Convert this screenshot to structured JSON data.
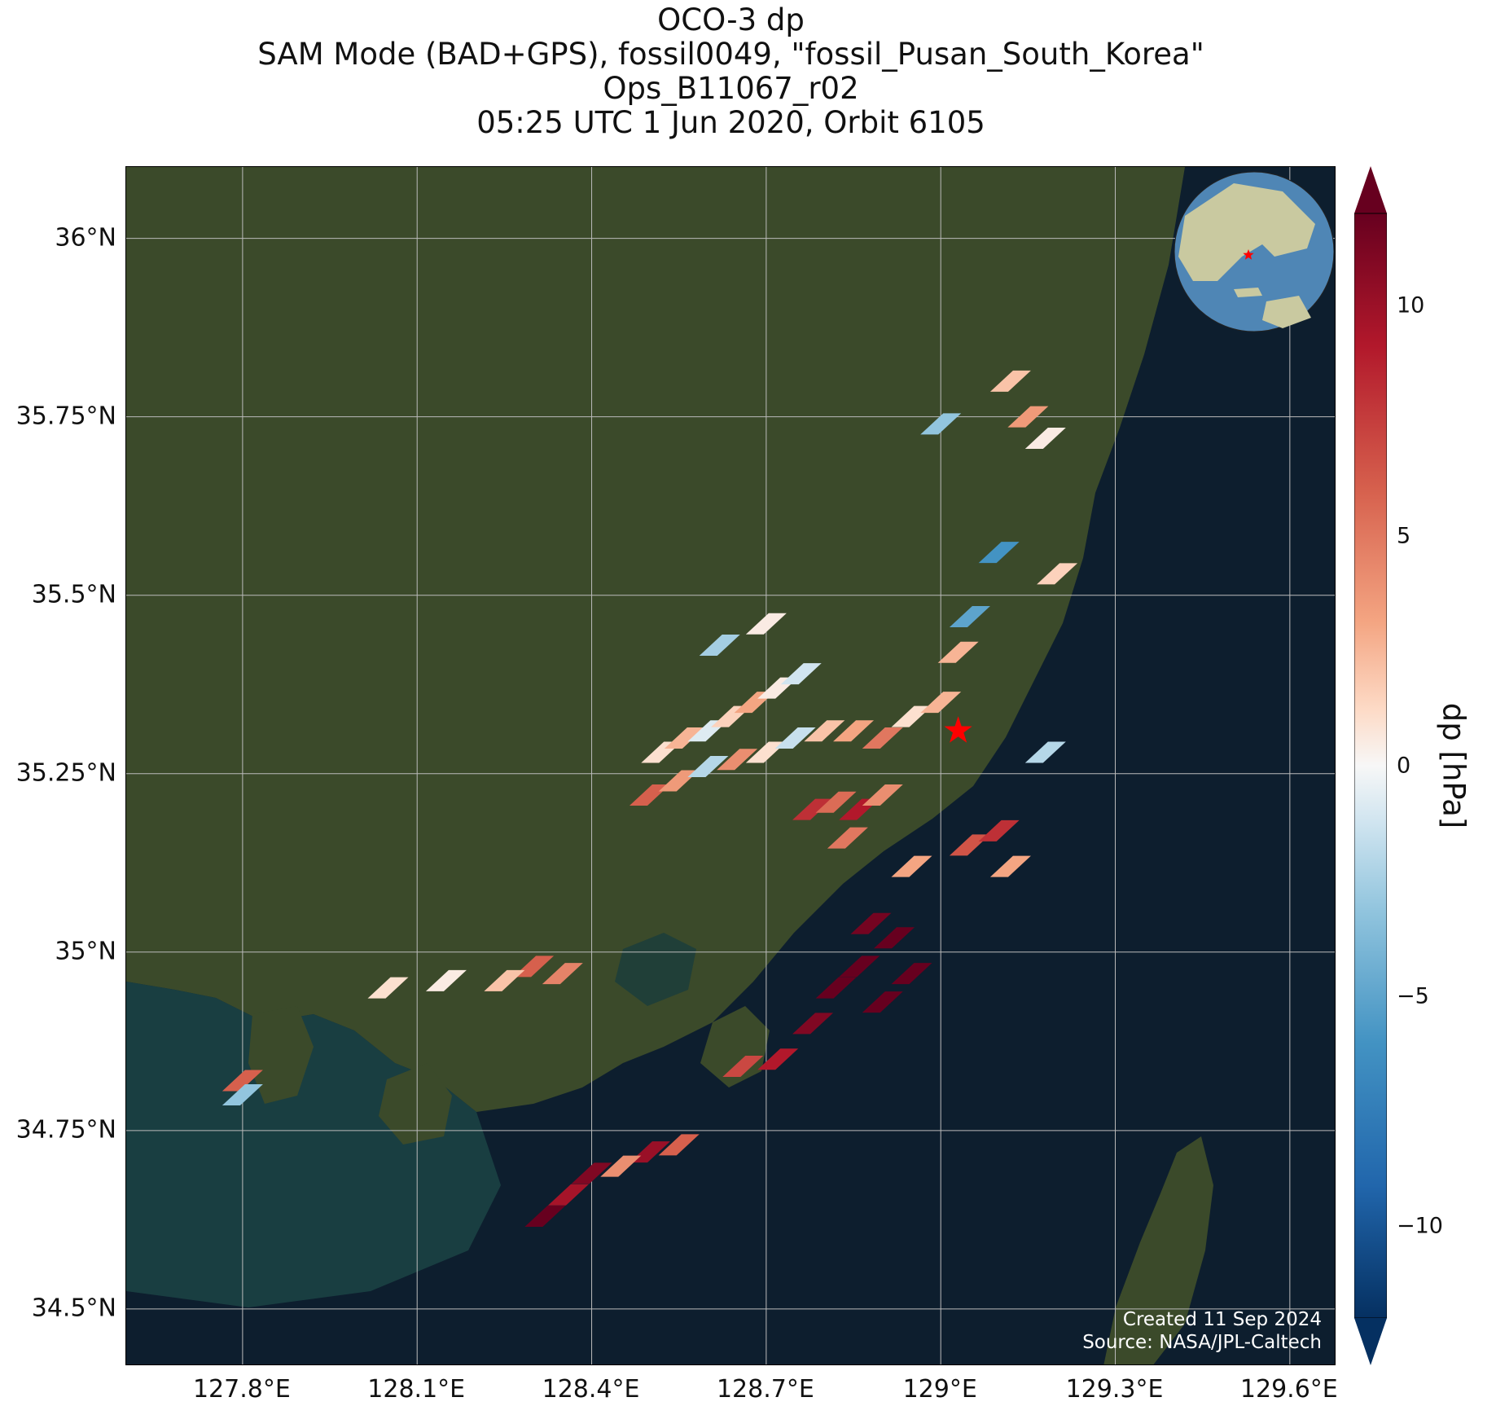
{
  "title": {
    "line1": "OCO-3 dp",
    "line2": "SAM Mode (BAD+GPS), fossil0049, \"fossil_Pusan_South_Korea\"",
    "line3": "Ops_B11067_r02",
    "line4": "05:25 UTC 1 Jun 2020, Orbit 6105"
  },
  "map": {
    "lon_range": [
      127.6,
      129.68
    ],
    "lat_range": [
      34.42,
      36.1
    ],
    "x_ticks": [
      "127.8°E",
      "128.1°E",
      "128.4°E",
      "128.7°E",
      "129°E",
      "129.3°E",
      "129.6°E"
    ],
    "x_tick_values": [
      127.8,
      128.1,
      128.4,
      128.7,
      129.0,
      129.3,
      129.6
    ],
    "y_ticks": [
      "36°N",
      "35.75°N",
      "35.5°N",
      "35.25°N",
      "35°N",
      "34.75°N",
      "34.5°N"
    ],
    "y_tick_values": [
      36.0,
      35.75,
      35.5,
      35.25,
      35.0,
      34.75,
      34.5
    ],
    "gridlines": true,
    "land_color": "#3b4a2a",
    "sea_color": "#0d1e2e",
    "target_marker": {
      "lon": 129.03,
      "lat": 35.31,
      "color": "#ff0000",
      "shape": "star"
    },
    "inset_globe": {
      "position": "top-right",
      "target_color": "#ff0000"
    }
  },
  "colorbar": {
    "label": "dp [hPa]",
    "vmin": -12,
    "vmax": 12,
    "ticks": [
      "10",
      "5",
      "0",
      "−5",
      "−10"
    ],
    "tick_values": [
      10,
      5,
      0,
      -5,
      -10
    ],
    "colormap": "RdBu_r",
    "extend": "both"
  },
  "chart_data": {
    "type": "heatmap",
    "variable": "dp",
    "units": "hPa",
    "soundings": [
      {
        "lon": 128.52,
        "lat": 35.28,
        "v": 1.0
      },
      {
        "lon": 128.56,
        "lat": 35.3,
        "v": 2.5
      },
      {
        "lon": 128.6,
        "lat": 35.31,
        "v": -0.8
      },
      {
        "lon": 128.64,
        "lat": 35.33,
        "v": 1.5
      },
      {
        "lon": 128.68,
        "lat": 35.35,
        "v": 3.0
      },
      {
        "lon": 128.72,
        "lat": 35.37,
        "v": 0.5
      },
      {
        "lon": 128.76,
        "lat": 35.39,
        "v": -1.2
      },
      {
        "lon": 128.5,
        "lat": 35.22,
        "v": 6.0
      },
      {
        "lon": 128.55,
        "lat": 35.24,
        "v": 3.5
      },
      {
        "lon": 128.6,
        "lat": 35.26,
        "v": -2.0
      },
      {
        "lon": 128.65,
        "lat": 35.27,
        "v": 4.0
      },
      {
        "lon": 128.7,
        "lat": 35.28,
        "v": 1.0
      },
      {
        "lon": 128.75,
        "lat": 35.3,
        "v": -1.5
      },
      {
        "lon": 128.8,
        "lat": 35.31,
        "v": 2.0
      },
      {
        "lon": 128.85,
        "lat": 35.31,
        "v": 3.0
      },
      {
        "lon": 128.9,
        "lat": 35.3,
        "v": 5.0
      },
      {
        "lon": 128.95,
        "lat": 35.33,
        "v": 1.0
      },
      {
        "lon": 129.0,
        "lat": 35.35,
        "v": 2.5
      },
      {
        "lon": 128.78,
        "lat": 35.2,
        "v": 8.0
      },
      {
        "lon": 128.82,
        "lat": 35.21,
        "v": 5.5
      },
      {
        "lon": 128.86,
        "lat": 35.2,
        "v": 9.0
      },
      {
        "lon": 128.9,
        "lat": 35.22,
        "v": 4.0
      },
      {
        "lon": 128.84,
        "lat": 35.16,
        "v": 5.0
      },
      {
        "lon": 128.95,
        "lat": 35.12,
        "v": 3.0
      },
      {
        "lon": 129.05,
        "lat": 35.15,
        "v": 6.5
      },
      {
        "lon": 129.1,
        "lat": 35.17,
        "v": 8.0
      },
      {
        "lon": 129.12,
        "lat": 35.12,
        "v": 3.0
      },
      {
        "lon": 128.88,
        "lat": 35.04,
        "v": 11.5
      },
      {
        "lon": 128.92,
        "lat": 35.02,
        "v": 12.0
      },
      {
        "lon": 128.86,
        "lat": 34.98,
        "v": 12.0
      },
      {
        "lon": 128.82,
        "lat": 34.95,
        "v": 12.0
      },
      {
        "lon": 128.9,
        "lat": 34.93,
        "v": 12.0
      },
      {
        "lon": 128.95,
        "lat": 34.97,
        "v": 12.0
      },
      {
        "lon": 128.78,
        "lat": 34.9,
        "v": 11.0
      },
      {
        "lon": 128.72,
        "lat": 34.85,
        "v": 9.0
      },
      {
        "lon": 128.66,
        "lat": 34.84,
        "v": 7.0
      },
      {
        "lon": 128.5,
        "lat": 34.72,
        "v": 10.0
      },
      {
        "lon": 128.45,
        "lat": 34.7,
        "v": 4.0
      },
      {
        "lon": 128.4,
        "lat": 34.69,
        "v": 11.0
      },
      {
        "lon": 128.36,
        "lat": 34.66,
        "v": 9.5
      },
      {
        "lon": 128.32,
        "lat": 34.63,
        "v": 12.0
      },
      {
        "lon": 128.55,
        "lat": 34.73,
        "v": 6.0
      },
      {
        "lon": 128.35,
        "lat": 34.97,
        "v": 4.5
      },
      {
        "lon": 128.3,
        "lat": 34.98,
        "v": 6.0
      },
      {
        "lon": 128.25,
        "lat": 34.96,
        "v": 2.0
      },
      {
        "lon": 128.15,
        "lat": 34.96,
        "v": 0.5
      },
      {
        "lon": 128.05,
        "lat": 34.95,
        "v": 1.0
      },
      {
        "lon": 127.8,
        "lat": 34.82,
        "v": 6.0
      },
      {
        "lon": 127.8,
        "lat": 34.8,
        "v": -3.0
      },
      {
        "lon": 129.12,
        "lat": 35.8,
        "v": 2.0
      },
      {
        "lon": 129.15,
        "lat": 35.75,
        "v": 3.5
      },
      {
        "lon": 129.18,
        "lat": 35.72,
        "v": 0.5
      },
      {
        "lon": 129.0,
        "lat": 35.74,
        "v": -3.0
      },
      {
        "lon": 129.1,
        "lat": 35.56,
        "v": -6.0
      },
      {
        "lon": 129.05,
        "lat": 35.47,
        "v": -5.0
      },
      {
        "lon": 129.03,
        "lat": 35.42,
        "v": 2.5
      },
      {
        "lon": 129.2,
        "lat": 35.53,
        "v": 1.5
      },
      {
        "lon": 129.18,
        "lat": 35.28,
        "v": -2.0
      },
      {
        "lon": 128.62,
        "lat": 35.43,
        "v": -2.5
      },
      {
        "lon": 128.7,
        "lat": 35.46,
        "v": 0.5
      }
    ]
  },
  "credits": {
    "line1": "Created 11 Sep 2024",
    "line2": "Source: NASA/JPL-Caltech"
  }
}
